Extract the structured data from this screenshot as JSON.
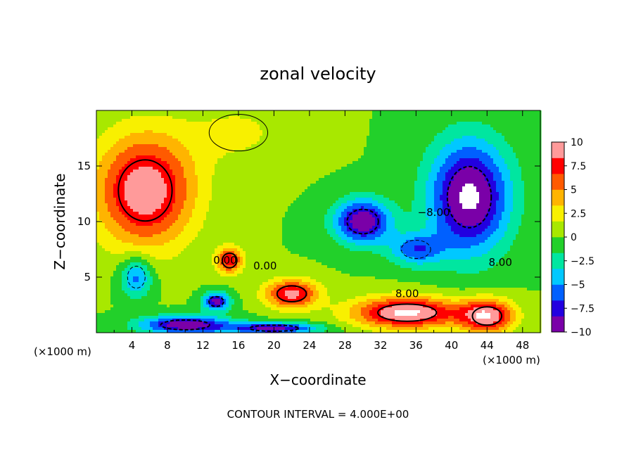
{
  "chart_data": {
    "type": "heatmap",
    "title": "zonal velocity",
    "xlabel": "X−coordinate",
    "ylabel": "Z−coordinate",
    "x_unit": "(×1000 m)",
    "xlim": [
      0,
      50
    ],
    "ylim": [
      0,
      20
    ],
    "x_ticks": [
      "4",
      "8",
      "12",
      "16",
      "20",
      "24",
      "28",
      "32",
      "36",
      "40",
      "44",
      "48"
    ],
    "y_ticks": [
      "5",
      "10",
      "15"
    ],
    "colorbar": {
      "ticks": [
        "10",
        "7.5",
        "5",
        "2.5",
        "0",
        "−2.5",
        "−5",
        "−7.5",
        "−10"
      ],
      "range": [
        -10,
        10
      ],
      "colors": [
        "#7a00a8",
        "#2200e0",
        "#0060ff",
        "#00c8ff",
        "#00e6a0",
        "#22d02a",
        "#a8e800",
        "#f8f000",
        "#ffb400",
        "#ff5a00",
        "#ff0000",
        "#ff9a9a"
      ]
    },
    "contour_interval": "CONTOUR INTERVAL = 4.000E+00",
    "contour_labels": [
      "0.00",
      "0.00",
      "8.00",
      "8.00",
      "−8.00"
    ],
    "features": [
      {
        "x": 5.5,
        "z": 12.8,
        "value": 10,
        "rx": 5.5,
        "rz": 5
      },
      {
        "x": 22,
        "z": 3.5,
        "value": 9,
        "rx": 3,
        "rz": 1.3
      },
      {
        "x": 35,
        "z": 1.8,
        "value": 11,
        "rx": 6,
        "rz": 1.4
      },
      {
        "x": 44,
        "z": 1.5,
        "value": 10,
        "rx": 3,
        "rz": 1.5
      },
      {
        "x": 15,
        "z": 6.5,
        "value": 8,
        "rx": 1.5,
        "rz": 1.2
      },
      {
        "x": 42,
        "z": 12.2,
        "value": -11,
        "rx": 4.5,
        "rz": 5
      },
      {
        "x": 30,
        "z": 10,
        "value": -10,
        "rx": 3.2,
        "rz": 2
      },
      {
        "x": 36,
        "z": 7.5,
        "value": -6,
        "rx": 3,
        "rz": 1.5
      },
      {
        "x": 10,
        "z": 0.7,
        "value": -10,
        "rx": 5,
        "rz": 0.8
      },
      {
        "x": 20,
        "z": 0.4,
        "value": -9,
        "rx": 5,
        "rz": 0.5
      },
      {
        "x": 13.5,
        "z": 2.8,
        "value": -9,
        "rx": 1.5,
        "rz": 0.8
      },
      {
        "x": 4.5,
        "z": 5,
        "value": -6,
        "rx": 1.8,
        "rz": 1.8
      },
      {
        "x": 16,
        "z": 18,
        "value": 2,
        "rx": 6,
        "rz": 3
      }
    ]
  }
}
